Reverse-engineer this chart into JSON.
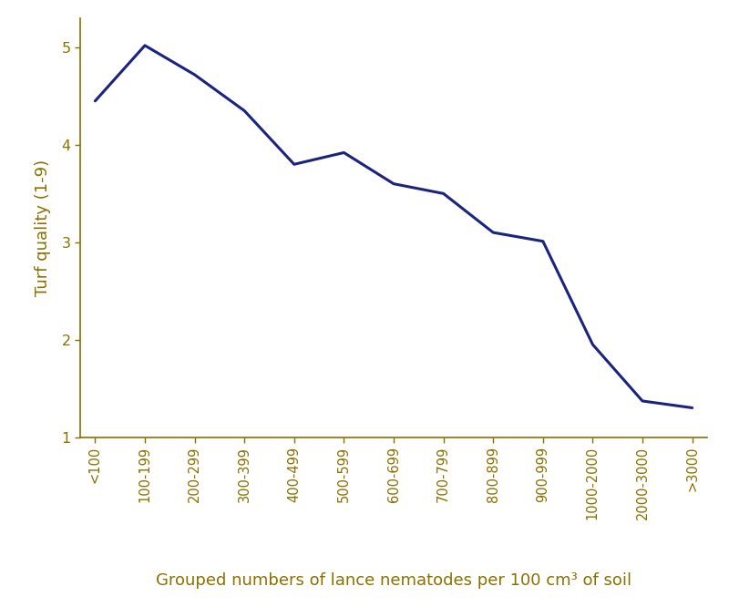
{
  "x_labels": [
    "<100",
    "100-199",
    "200-299",
    "300-399",
    "400-499",
    "500-599",
    "600-699",
    "700-799",
    "800-899",
    "900-999",
    "1000-2000",
    "2000-3000",
    ">3000"
  ],
  "y_values": [
    4.45,
    5.02,
    4.72,
    4.35,
    3.8,
    3.92,
    3.6,
    3.5,
    3.1,
    3.01,
    1.95,
    1.37,
    1.3
  ],
  "line_color": "#1a237e",
  "line_width": 2.2,
  "ylabel": "Turf quality (1-9)",
  "axis_color": "#8B7000",
  "tick_color": "#8B7000",
  "label_color": "#8B7000",
  "ylim": [
    1,
    5.3
  ],
  "yticks": [
    1,
    2,
    3,
    4,
    5
  ],
  "background_color": "#ffffff",
  "axis_label_fontsize": 13,
  "tick_fontsize": 10.5
}
